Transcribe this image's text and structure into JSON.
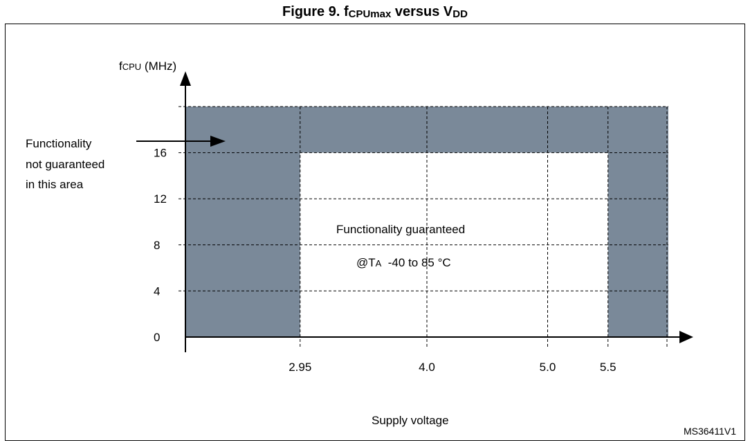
{
  "figure": {
    "title_prefix": "Figure 9. f",
    "title_sub1": "CPUmax",
    "title_mid": " versus V",
    "title_sub2": "DD",
    "reference": "MS36411V1"
  },
  "chart_data": {
    "type": "area",
    "title": "Figure 9. fCPUmax versus VDD",
    "ylabel_main": "f",
    "ylabel_sub": "CPU",
    "ylabel_unit": " (MHz)",
    "xlabel": "Supply voltage",
    "y_ticks": [
      {
        "value": 0,
        "label": "0"
      },
      {
        "value": 4,
        "label": "4"
      },
      {
        "value": 8,
        "label": "8"
      },
      {
        "value": 12,
        "label": "12"
      },
      {
        "value": 16,
        "label": "16"
      }
    ],
    "y_top_gridline": 20,
    "x_ticks": [
      {
        "value": 2.95,
        "label": "2.95"
      },
      {
        "value": 4.0,
        "label": "4.0"
      },
      {
        "value": 5.0,
        "label": "5.0"
      },
      {
        "value": 5.5,
        "label": "5.5"
      }
    ],
    "x_range": [
      2.0,
      6.0
    ],
    "y_range": [
      0,
      20
    ],
    "grid": true,
    "regions": [
      {
        "name": "not_guaranteed",
        "color": "#7a8999",
        "x": [
          2.0,
          6.0
        ],
        "y": [
          0,
          20
        ]
      },
      {
        "name": "guaranteed",
        "color": "#ffffff",
        "x": [
          2.95,
          5.5
        ],
        "y": [
          0,
          16
        ]
      }
    ],
    "annotations": {
      "not_guaranteed": [
        "Functionality",
        "not guaranteed",
        "in this area"
      ],
      "guaranteed_line1": "Functionality guaranteed",
      "guaranteed_prefix": "@T",
      "guaranteed_sub": "A",
      "guaranteed_range": "  -40 to 85 °C"
    }
  }
}
